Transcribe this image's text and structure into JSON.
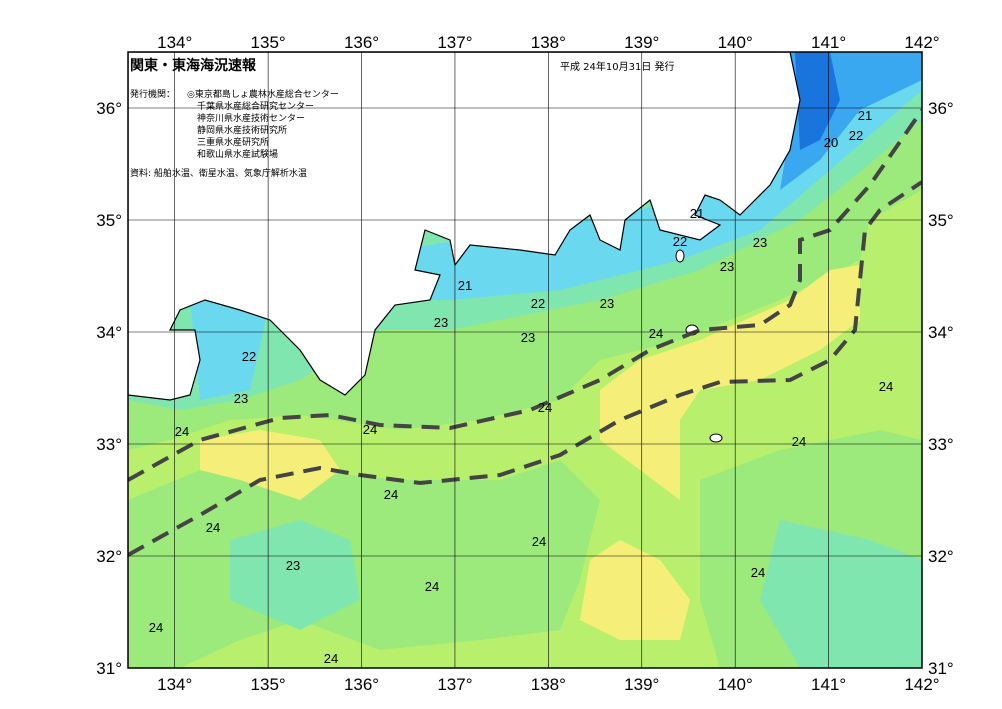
{
  "header": {
    "title": "関東・東海海況速報",
    "issue_date": "平成 24年10月31日 発行",
    "issuer_label": "発行機関：",
    "issuers": [
      "◎東京都島しょ農林水産総合センター",
      "千葉県水産総合研究センター",
      "神奈川県水産技術センター",
      "静岡県水産技術研究所",
      "三重県水産研究所",
      "和歌山県水産試験場"
    ],
    "source": "資料: 船舶水温、衛星水温、気象庁解析水温"
  },
  "map": {
    "xlim": [
      133.5,
      142
    ],
    "ylim": [
      31,
      36.5
    ],
    "xticks": [
      {
        "value": 134,
        "label": "134°"
      },
      {
        "value": 135,
        "label": "135°"
      },
      {
        "value": 136,
        "label": "136°"
      },
      {
        "value": 137,
        "label": "137°"
      },
      {
        "value": 138,
        "label": "138°"
      },
      {
        "value": 139,
        "label": "139°"
      },
      {
        "value": 140,
        "label": "140°"
      },
      {
        "value": 141,
        "label": "141°"
      },
      {
        "value": 142,
        "label": "142°"
      }
    ],
    "yticks": [
      {
        "value": 31,
        "label": "31°"
      },
      {
        "value": 32,
        "label": "32°"
      },
      {
        "value": 33,
        "label": "33°"
      },
      {
        "value": 34,
        "label": "34°"
      },
      {
        "value": 35,
        "label": "35°"
      },
      {
        "value": 36,
        "label": "36°"
      }
    ],
    "contour_labels": [
      "21",
      "22",
      "20",
      "21",
      "22",
      "23",
      "23",
      "21",
      "22",
      "23",
      "23",
      "23",
      "24",
      "22",
      "23",
      "24",
      "24",
      "24",
      "24",
      "24",
      "24",
      "24",
      "24",
      "23",
      "24",
      "24",
      "24",
      "24"
    ]
  }
}
